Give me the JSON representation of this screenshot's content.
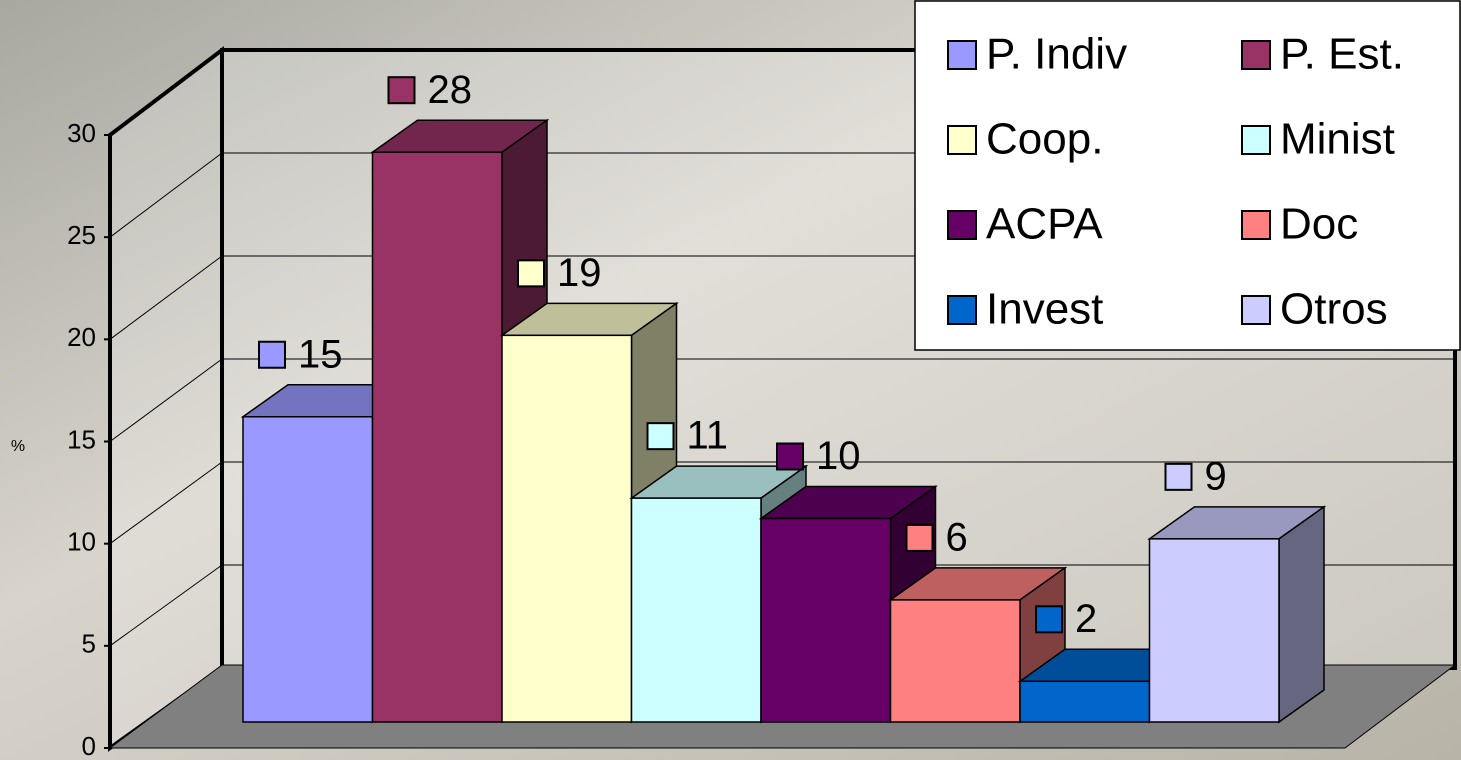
{
  "chart_data": {
    "type": "bar3d",
    "y_label": "%",
    "series": [
      {
        "name": "P. Indiv",
        "color": "#9999ff",
        "values": [
          15
        ]
      },
      {
        "name": "P. Est.",
        "color": "#993366",
        "values": [
          28
        ]
      },
      {
        "name": "Coop.",
        "color": "#ffffcc",
        "values": [
          19
        ]
      },
      {
        "name": "Minist",
        "color": "#ccffff",
        "values": [
          11
        ]
      },
      {
        "name": "ACPA",
        "color": "#660066",
        "values": [
          10
        ]
      },
      {
        "name": "Doc",
        "color": "#ff8080",
        "values": [
          6
        ]
      },
      {
        "name": "Invest",
        "color": "#0066cc",
        "values": [
          2
        ]
      },
      {
        "name": "Otros",
        "color": "#ccccff",
        "values": [
          9
        ]
      }
    ],
    "ylim": [
      0,
      30
    ],
    "yticks": [
      0,
      5,
      10,
      15,
      20,
      25,
      30
    ],
    "grid": true,
    "legend": "top-right"
  }
}
